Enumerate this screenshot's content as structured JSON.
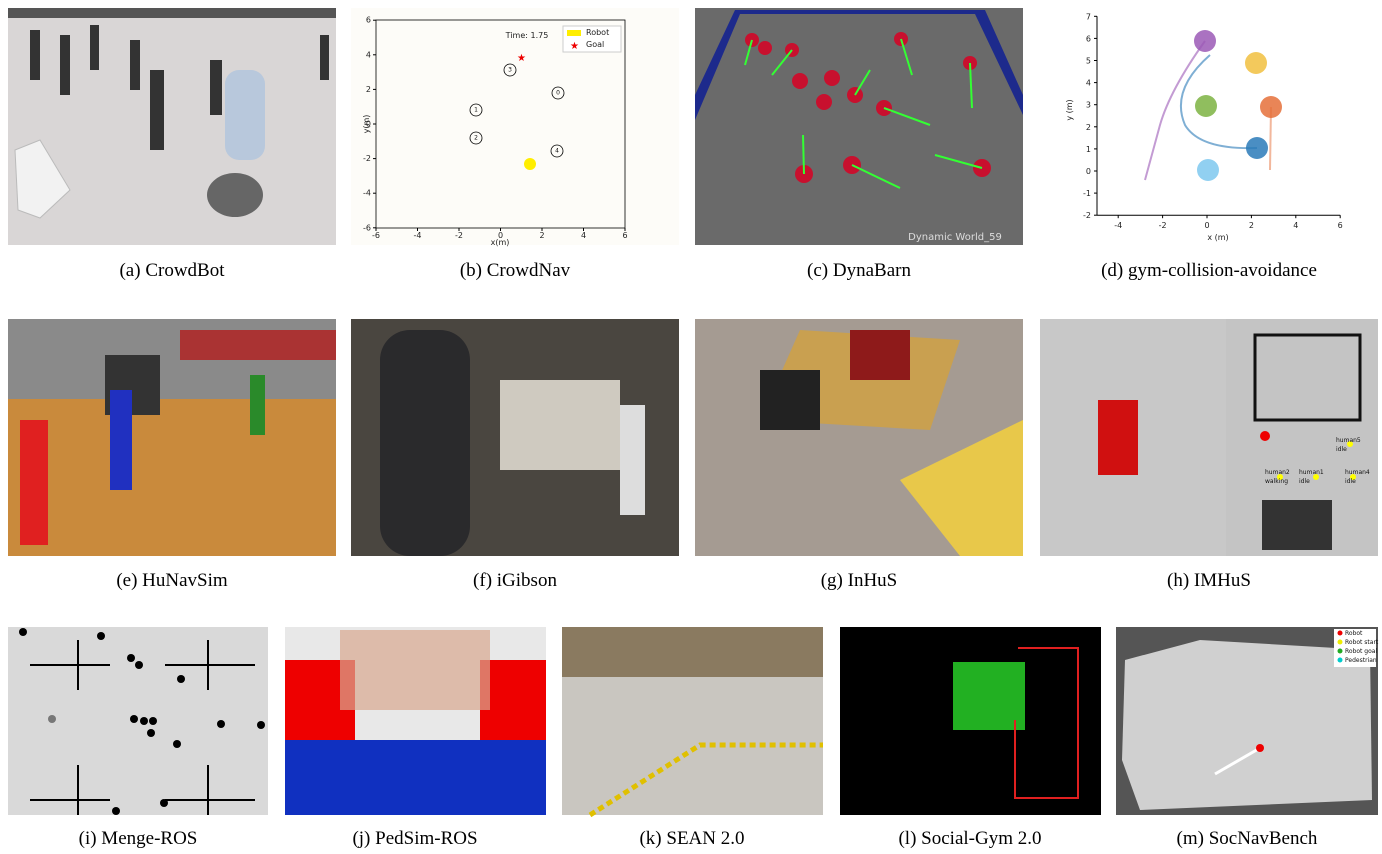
{
  "panels": [
    {
      "caption": "(a) CrowdBot"
    },
    {
      "caption": "(b) CrowdNav",
      "time_label": "Time: 1.75",
      "legend": [
        "Robot",
        "Goal"
      ],
      "x_label": "x(m)",
      "y_label": "y(m)",
      "xticks": [
        -6,
        -4,
        -2,
        0,
        2,
        4,
        6
      ],
      "yticks": [
        -6,
        -4,
        -2,
        0,
        2,
        4,
        6
      ],
      "humans": [
        "0",
        "1",
        "2",
        "3",
        "4"
      ]
    },
    {
      "caption": "(c) DynaBarn",
      "world_label": "Dynamic World_59"
    },
    {
      "caption": "(d) gym-collision-avoidance",
      "x_label": "x (m)",
      "y_label": "y (m)",
      "xticks": [
        -4,
        -2,
        0,
        2,
        4,
        6
      ],
      "yticks": [
        -2,
        -1,
        0,
        1,
        2,
        3,
        4,
        5,
        6,
        7
      ]
    },
    {
      "caption": "(e) HuNavSim"
    },
    {
      "caption": "(f) iGibson"
    },
    {
      "caption": "(g) InHuS"
    },
    {
      "caption": "(h) IMHuS",
      "agents": [
        {
          "label": "human5",
          "state": "idle"
        },
        {
          "label": "human2",
          "state": "walking"
        },
        {
          "label": "human1",
          "state": "idle"
        },
        {
          "label": "human4",
          "state": "idle"
        }
      ]
    },
    {
      "caption": "(i) Menge-ROS"
    },
    {
      "caption": "(j) PedSim-ROS"
    },
    {
      "caption": "(k) SEAN 2.0"
    },
    {
      "caption": "(l) Social-Gym 2.0"
    },
    {
      "caption": "(m) SocNavBench",
      "legend": [
        "Robot",
        "Robot start",
        "Robot goal",
        "Pedestrian"
      ]
    }
  ]
}
